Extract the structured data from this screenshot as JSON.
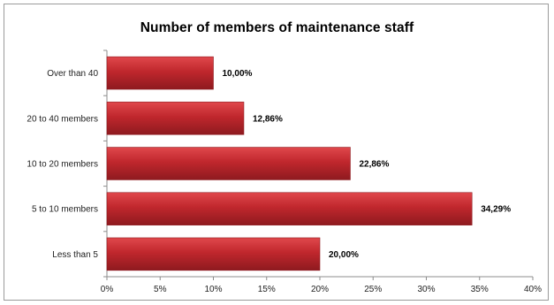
{
  "chart_data": {
    "type": "bar",
    "orientation": "horizontal",
    "title": "Number of members of maintenance staff",
    "categories": [
      "Over than 40",
      "20 to 40 members",
      "10 to 20 members",
      "5 to 10 members",
      "Less than 5"
    ],
    "values": [
      10.0,
      12.86,
      22.86,
      34.29,
      20.0
    ],
    "data_labels": [
      "10,00%",
      "12,86%",
      "22,86%",
      "34,29%",
      "20,00%"
    ],
    "xlim": [
      0,
      40
    ],
    "x_ticks": [
      0,
      5,
      10,
      15,
      20,
      25,
      30,
      35,
      40
    ],
    "x_tick_labels": [
      "0%",
      "5%",
      "10%",
      "15%",
      "20%",
      "25%",
      "30%",
      "35%",
      "40%"
    ],
    "xlabel": "",
    "ylabel": "",
    "grid": false,
    "legend": "none",
    "bar_color": "#c0272d",
    "bar_color_light": "#e0484c",
    "bar_color_dark": "#8e1a1f"
  }
}
